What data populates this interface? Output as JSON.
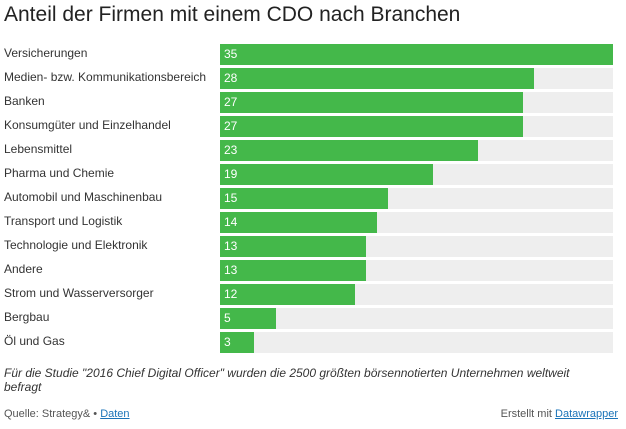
{
  "title": "Anteil der Firmen mit einem CDO nach Branchen",
  "note": "Für die Studie \"2016 Chief Digital Officer\" wurden die 2500 größten börsennotierten Unternehmen weltweit befragt",
  "footer": {
    "source_prefix": "Quelle: Strategy& •",
    "data_link": "Daten",
    "created_prefix": "Erstellt mit",
    "created_link": "Datawrapper"
  },
  "colors": {
    "bar": "#44b84a",
    "track": "#eeeeee"
  },
  "chart_data": {
    "type": "bar",
    "orientation": "horizontal",
    "title": "Anteil der Firmen mit einem CDO nach Branchen",
    "xlabel": "",
    "ylabel": "",
    "xlim": [
      0,
      35
    ],
    "grid": false,
    "categories": [
      "Versicherungen",
      "Medien- bzw. Kommunikationsbereich",
      "Banken",
      "Konsumgüter und Einzelhandel",
      "Lebensmittel",
      "Pharma und Chemie",
      "Automobil und Maschinenbau",
      "Transport und Logistik",
      "Technologie und Elektronik",
      "Andere",
      "Strom und Wasserversorger",
      "Bergbau",
      "Öl und Gas"
    ],
    "values": [
      35,
      28,
      27,
      27,
      23,
      19,
      15,
      14,
      13,
      13,
      12,
      5,
      3
    ]
  }
}
